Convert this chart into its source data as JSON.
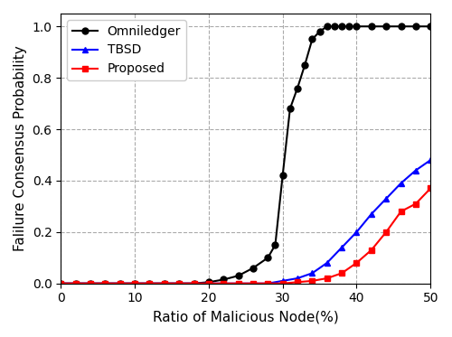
{
  "xlabel": "Ratio of Malicious Node(%)",
  "ylabel": "Falilure Consensus Probability",
  "xlim": [
    0,
    50
  ],
  "ylim": [
    0.0,
    1.05
  ],
  "xticks": [
    0,
    10,
    20,
    30,
    40,
    50
  ],
  "yticks": [
    0.0,
    0.2,
    0.4,
    0.6,
    0.8,
    1.0
  ],
  "omniledger_x": [
    0,
    2,
    4,
    6,
    8,
    10,
    12,
    14,
    16,
    18,
    20,
    22,
    24,
    26,
    28,
    29,
    30,
    31,
    32,
    33,
    34,
    35,
    36,
    37,
    38,
    39,
    40,
    42,
    44,
    46,
    48,
    50
  ],
  "omniledger_y": [
    0.0,
    0.0,
    0.0,
    0.0,
    0.0,
    0.0,
    0.0,
    0.0,
    0.0,
    0.0,
    0.005,
    0.015,
    0.03,
    0.06,
    0.1,
    0.15,
    0.42,
    0.68,
    0.76,
    0.85,
    0.95,
    0.98,
    1.0,
    1.0,
    1.0,
    1.0,
    1.0,
    1.0,
    1.0,
    1.0,
    1.0,
    1.0
  ],
  "tbsd_x": [
    0,
    2,
    4,
    6,
    8,
    10,
    12,
    14,
    16,
    18,
    20,
    22,
    24,
    26,
    28,
    30,
    32,
    34,
    36,
    38,
    40,
    42,
    44,
    46,
    48,
    50
  ],
  "tbsd_y": [
    0.0,
    0.0,
    0.0,
    0.0,
    0.0,
    0.0,
    0.0,
    0.0,
    0.0,
    0.0,
    0.0,
    0.0,
    0.0,
    0.0,
    0.0,
    0.01,
    0.02,
    0.04,
    0.08,
    0.14,
    0.2,
    0.27,
    0.33,
    0.39,
    0.44,
    0.48
  ],
  "proposed_x": [
    0,
    2,
    4,
    6,
    8,
    10,
    12,
    14,
    16,
    18,
    20,
    22,
    24,
    26,
    28,
    30,
    32,
    34,
    36,
    38,
    40,
    42,
    44,
    46,
    48,
    50
  ],
  "proposed_y": [
    0.0,
    0.0,
    0.0,
    0.0,
    0.0,
    0.0,
    0.0,
    0.0,
    0.0,
    0.0,
    0.0,
    0.0,
    0.0,
    0.0,
    0.0,
    0.0,
    0.005,
    0.01,
    0.02,
    0.04,
    0.08,
    0.13,
    0.2,
    0.28,
    0.31,
    0.37
  ],
  "omniledger_color": "#000000",
  "tbsd_color": "#0000ff",
  "proposed_color": "#ff0000",
  "omniledger_marker": "o",
  "tbsd_marker": "^",
  "proposed_marker": "s",
  "legend_labels": [
    "Omniledger",
    "TBSD",
    "Proposed"
  ],
  "grid_linestyle": "--",
  "grid_color": "#aaaaaa",
  "background_color": "#ffffff",
  "marker_size": 5,
  "line_width": 1.5,
  "xlabel_fontsize": 11,
  "ylabel_fontsize": 11,
  "legend_fontsize": 10
}
